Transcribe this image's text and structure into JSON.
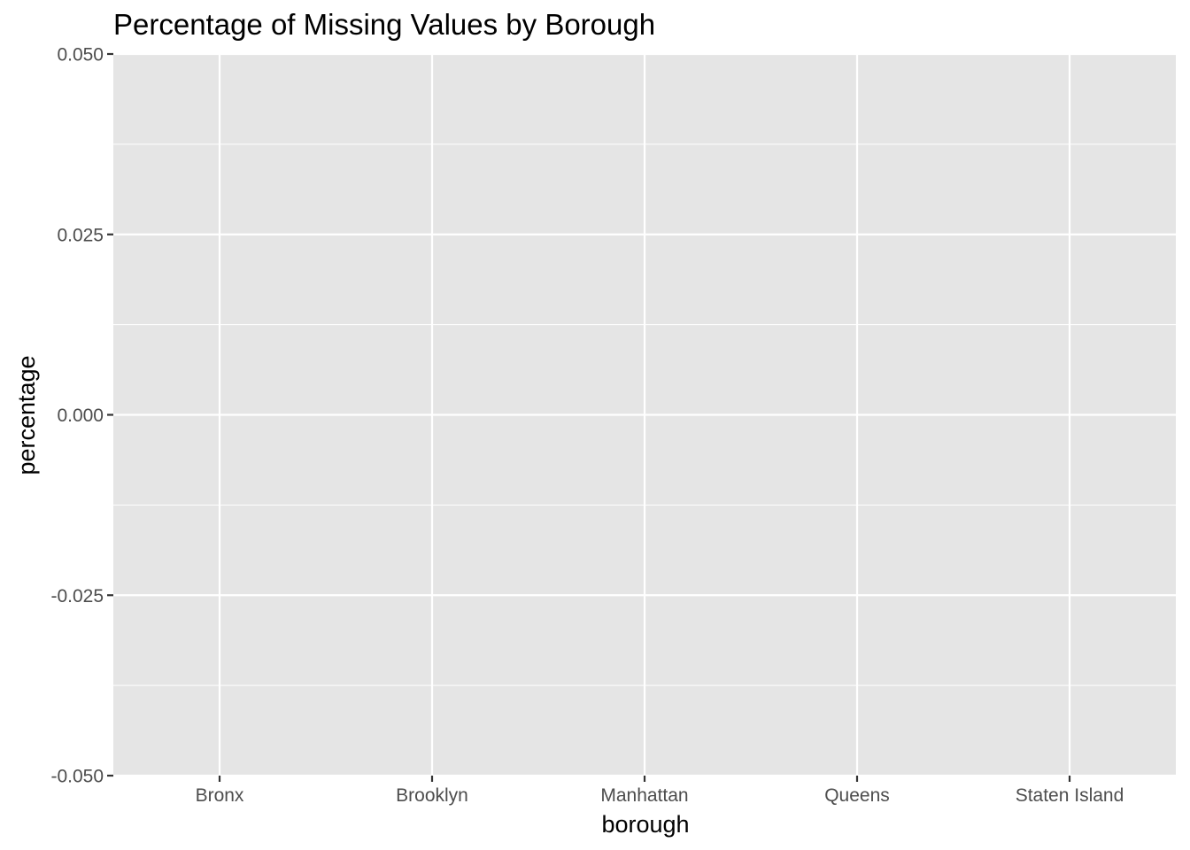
{
  "chart_data": {
    "type": "bar",
    "title": "Percentage of Missing Values by Borough",
    "xlabel": "borough",
    "ylabel": "percentage",
    "categories": [
      "Bronx",
      "Brooklyn",
      "Manhattan",
      "Queens",
      "Staten Island"
    ],
    "values": [
      0,
      0,
      0,
      0,
      0
    ],
    "ylim": [
      -0.05,
      0.05
    ],
    "y_ticks": [
      0.05,
      0.025,
      0,
      -0.025,
      -0.05
    ],
    "y_tick_labels": [
      "0.050",
      "0.025",
      "0.000",
      "-0.025",
      "-0.050"
    ],
    "grid": true,
    "colors": {
      "panel_background": "#e5e5e5",
      "grid_line": "#ffffff",
      "tick_mark": "#333333",
      "tick_label": "#4d4d4d",
      "text": "#000000"
    }
  }
}
